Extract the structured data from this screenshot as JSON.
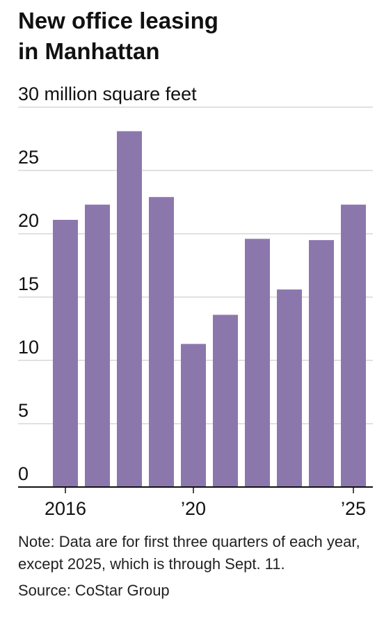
{
  "title_line1": "New office leasing",
  "title_line2": "in Manhattan",
  "note": "Note: Data are for first three quarters of each year, except 2025, which is through Sept. 11.",
  "source": "Source: CoStar Group",
  "colors": {
    "bar": "#8c77ad",
    "grid": "#cfcfcf",
    "axis": "#111111",
    "text": "#111111"
  },
  "chart_data": {
    "type": "bar",
    "categories": [
      "2016",
      "2017",
      "2018",
      "2019",
      "2020",
      "2021",
      "2022",
      "2023",
      "2024",
      "2025"
    ],
    "values": [
      21.1,
      22.3,
      28.1,
      22.9,
      11.3,
      13.6,
      19.6,
      15.6,
      19.5,
      22.3
    ],
    "unit": "million square feet",
    "ylim": [
      0,
      30
    ],
    "yticks": [
      0,
      5,
      10,
      15,
      20,
      25,
      30
    ],
    "ytick_labels": [
      "0",
      "5",
      "10",
      "15",
      "20",
      "25",
      "30 million square feet"
    ],
    "xtick_labels": [
      {
        "index": 0,
        "label": "2016"
      },
      {
        "index": 4,
        "label": "’20"
      },
      {
        "index": 9,
        "label": "’25"
      }
    ],
    "grid": true,
    "legend": "none"
  }
}
